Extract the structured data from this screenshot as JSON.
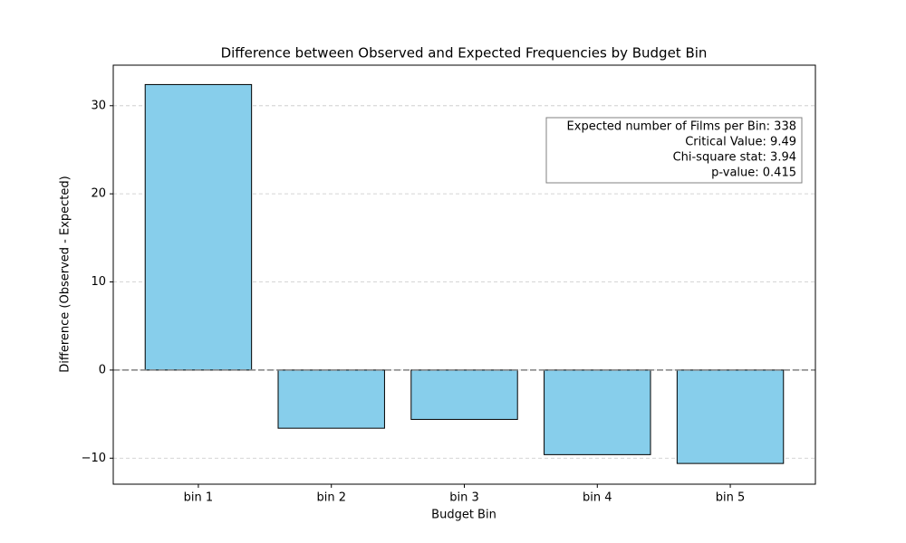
{
  "chart_data": {
    "type": "bar",
    "title": "Difference between Observed and Expected Frequencies by Budget Bin",
    "x_label": "Budget Bin",
    "y_label": "Difference (Observed - Expected)",
    "categories": [
      "bin 1",
      "bin 2",
      "bin 3",
      "bin 4",
      "bin 5"
    ],
    "values": [
      32.4,
      -6.6,
      -5.6,
      -9.6,
      -10.6
    ],
    "color": "#87ceeb",
    "edge_color": "#000000",
    "ylim": [
      -12.95,
      34.6
    ],
    "yticks": [
      {
        "value": -10,
        "label": "−10"
      },
      0,
      10,
      20,
      30
    ],
    "grid": true,
    "annotation": [
      "Expected number of Films per Bin: 338",
      "Critical Value: 9.49",
      "Chi-square stat: 3.94",
      "p-value: 0.415"
    ]
  }
}
